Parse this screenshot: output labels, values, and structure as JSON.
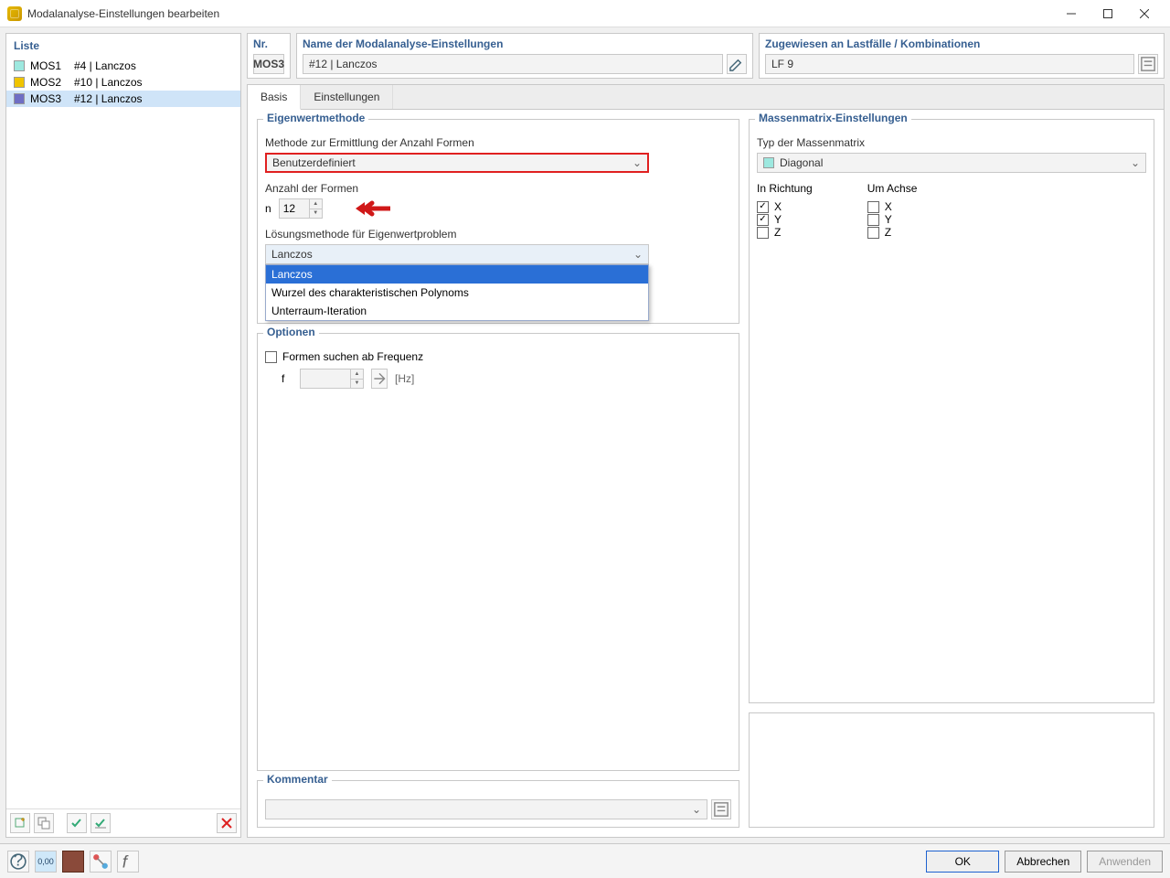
{
  "window": {
    "title": "Modalanalyse-Einstellungen bearbeiten"
  },
  "left": {
    "title": "Liste",
    "items": [
      {
        "code": "MOS1",
        "label": "#4 | Lanczos",
        "color": "#9de8df",
        "selected": false
      },
      {
        "code": "MOS2",
        "label": "#10 | Lanczos",
        "color": "#f0c400",
        "selected": false
      },
      {
        "code": "MOS3",
        "label": "#12 | Lanczos",
        "color": "#6f6ec4",
        "selected": true
      }
    ]
  },
  "header": {
    "nr_label": "Nr.",
    "nr_value": "MOS3",
    "name_label": "Name der Modalanalyse-Einstellungen",
    "name_value": "#12 | Lanczos",
    "assign_label": "Zugewiesen an Lastfälle / Kombinationen",
    "assign_value": "LF 9"
  },
  "tabs": {
    "items": [
      "Basis",
      "Einstellungen"
    ],
    "active": 0
  },
  "eigen": {
    "title": "Eigenwertmethode",
    "method_label": "Methode zur Ermittlung der Anzahl Formen",
    "method_value": "Benutzerdefiniert",
    "count_label": "Anzahl der Formen",
    "count_n": "n",
    "count_value": "12",
    "solver_label": "Lösungsmethode für Eigenwertproblem",
    "solver_value": "Lanczos",
    "solver_options": [
      "Lanczos",
      "Wurzel des charakteristischen Polynoms",
      "Unterraum-Iteration"
    ],
    "solver_selected_index": 0
  },
  "options": {
    "title": "Optionen",
    "freq_label": "Formen suchen ab Frequenz",
    "freq_checked": false,
    "f_label": "f",
    "f_unit": "[Hz]"
  },
  "kommentar": {
    "title": "Kommentar"
  },
  "mass": {
    "title": "Massenmatrix-Einstellungen",
    "type_label": "Typ der Massenmatrix",
    "type_value": "Diagonal",
    "type_swatch_color": "#9de8df",
    "dir_label": "In Richtung",
    "axis_label": "Um Achse",
    "dir": [
      {
        "name": "X",
        "checked": true
      },
      {
        "name": "Y",
        "checked": true
      },
      {
        "name": "Z",
        "checked": false
      }
    ],
    "axis": [
      {
        "name": "X",
        "checked": false
      },
      {
        "name": "Y",
        "checked": false
      },
      {
        "name": "Z",
        "checked": false
      }
    ]
  },
  "footer": {
    "ok": "OK",
    "cancel": "Abbrechen",
    "apply": "Anwenden"
  },
  "colors": {
    "highlight_border": "#e02020",
    "selection_bg": "#2a6fd6"
  }
}
